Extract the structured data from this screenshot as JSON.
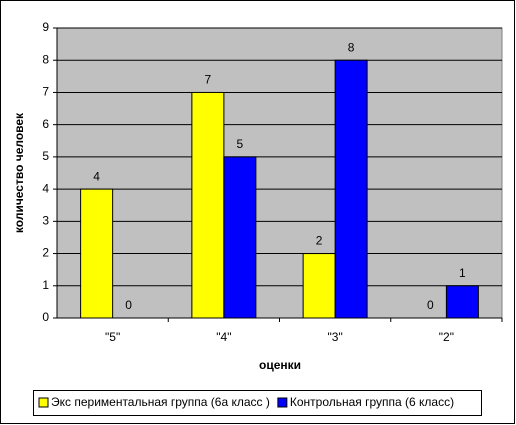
{
  "chart_data": {
    "type": "bar",
    "categories": [
      "\"5\"",
      "\"4\"",
      "\"3\"",
      "\"2\""
    ],
    "series": [
      {
        "name": "Экс периментальная группа (6а класс )",
        "color": "#ffff00",
        "values": [
          4,
          7,
          2,
          0
        ]
      },
      {
        "name": "Контрольная группа (6 класс)",
        "color": "#0000ff",
        "values": [
          0,
          5,
          8,
          1
        ]
      }
    ],
    "x_label": "оценки",
    "y_label": "количество человек",
    "ylim": [
      0,
      9
    ],
    "yticks": [
      0,
      1,
      2,
      3,
      4,
      5,
      6,
      7,
      8,
      9
    ],
    "grid": true,
    "legend": "bottom",
    "plot_background": "#c0c0c0"
  }
}
